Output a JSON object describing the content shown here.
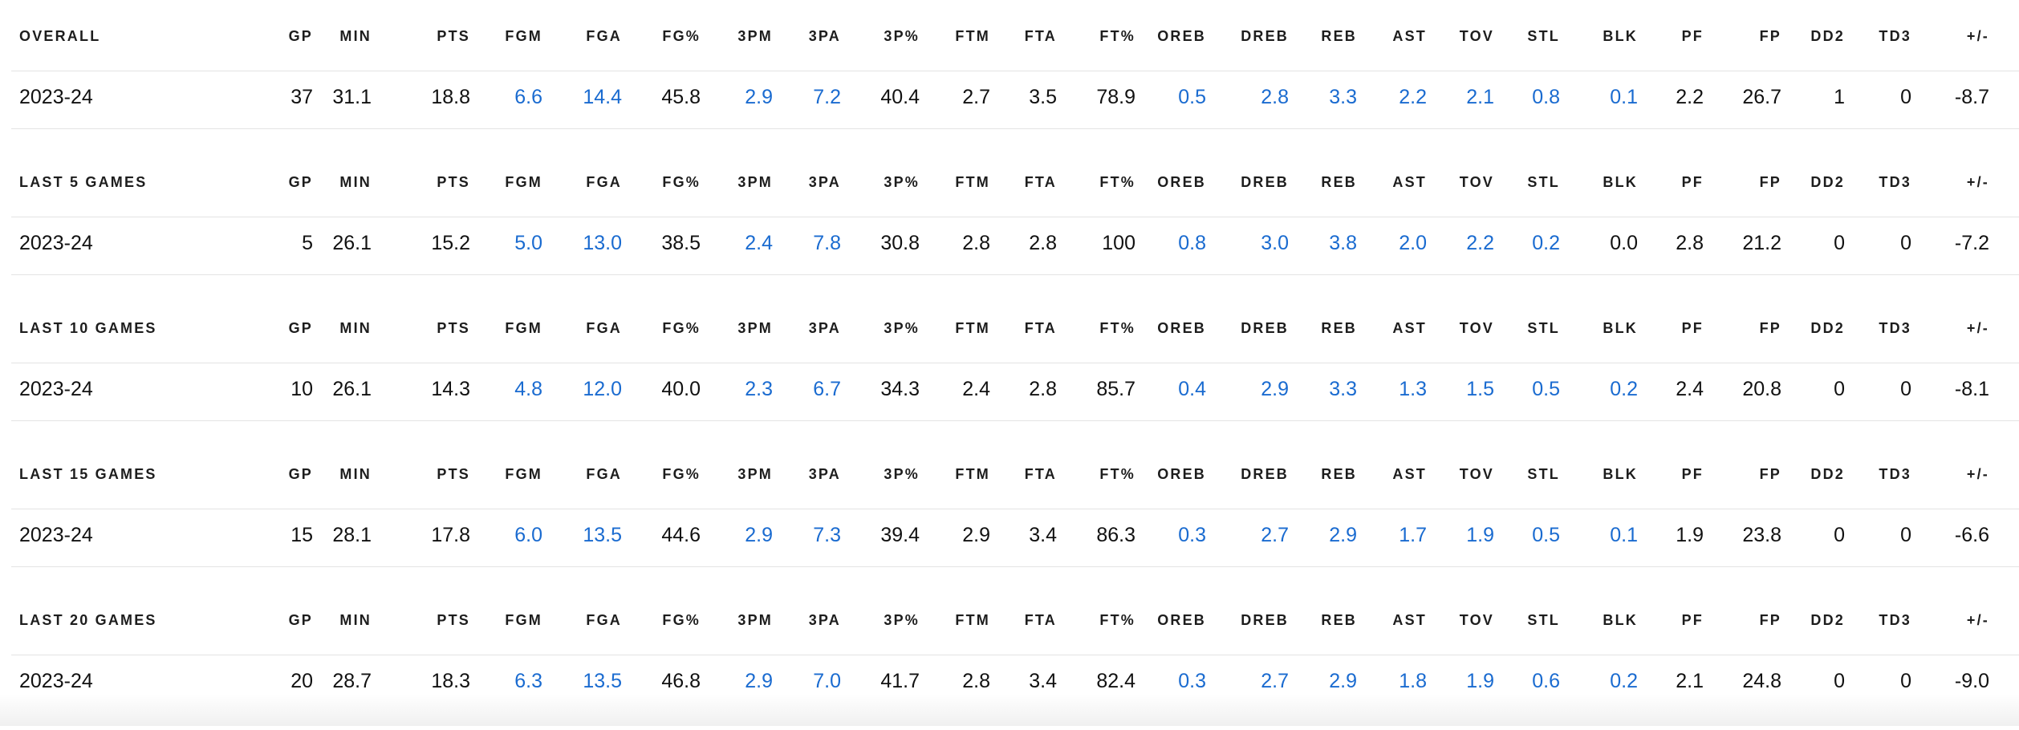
{
  "columns": [
    "GP",
    "MIN",
    "PTS",
    "FGM",
    "FGA",
    "FG%",
    "3PM",
    "3PA",
    "3P%",
    "FTM",
    "FTA",
    "FT%",
    "OREB",
    "DREB",
    "REB",
    "AST",
    "TOV",
    "STL",
    "BLK",
    "PF",
    "FP",
    "DD2",
    "TD3",
    "+/-"
  ],
  "link_color": "#1a6bd0",
  "sections": [
    {
      "title": "OVERALL",
      "row_label": "2023-24",
      "values": [
        "37",
        "31.1",
        "18.8",
        "6.6",
        "14.4",
        "45.8",
        "2.9",
        "7.2",
        "40.4",
        "2.7",
        "3.5",
        "78.9",
        "0.5",
        "2.8",
        "3.3",
        "2.2",
        "2.1",
        "0.8",
        "0.1",
        "2.2",
        "26.7",
        "1",
        "0",
        "-8.7"
      ],
      "links": [
        false,
        false,
        false,
        true,
        true,
        false,
        true,
        true,
        false,
        false,
        false,
        false,
        true,
        true,
        true,
        true,
        true,
        true,
        true,
        false,
        false,
        false,
        false,
        false
      ]
    },
    {
      "title": "LAST 5 GAMES",
      "row_label": "2023-24",
      "values": [
        "5",
        "26.1",
        "15.2",
        "5.0",
        "13.0",
        "38.5",
        "2.4",
        "7.8",
        "30.8",
        "2.8",
        "2.8",
        "100",
        "0.8",
        "3.0",
        "3.8",
        "2.0",
        "2.2",
        "0.2",
        "0.0",
        "2.8",
        "21.2",
        "0",
        "0",
        "-7.2"
      ],
      "links": [
        false,
        false,
        false,
        true,
        true,
        false,
        true,
        true,
        false,
        false,
        false,
        false,
        true,
        true,
        true,
        true,
        true,
        true,
        false,
        false,
        false,
        false,
        false,
        false
      ]
    },
    {
      "title": "LAST 10 GAMES",
      "row_label": "2023-24",
      "values": [
        "10",
        "26.1",
        "14.3",
        "4.8",
        "12.0",
        "40.0",
        "2.3",
        "6.7",
        "34.3",
        "2.4",
        "2.8",
        "85.7",
        "0.4",
        "2.9",
        "3.3",
        "1.3",
        "1.5",
        "0.5",
        "0.2",
        "2.4",
        "20.8",
        "0",
        "0",
        "-8.1"
      ],
      "links": [
        false,
        false,
        false,
        true,
        true,
        false,
        true,
        true,
        false,
        false,
        false,
        false,
        true,
        true,
        true,
        true,
        true,
        true,
        true,
        false,
        false,
        false,
        false,
        false
      ]
    },
    {
      "title": "LAST 15 GAMES",
      "row_label": "2023-24",
      "values": [
        "15",
        "28.1",
        "17.8",
        "6.0",
        "13.5",
        "44.6",
        "2.9",
        "7.3",
        "39.4",
        "2.9",
        "3.4",
        "86.3",
        "0.3",
        "2.7",
        "2.9",
        "1.7",
        "1.9",
        "0.5",
        "0.1",
        "1.9",
        "23.8",
        "0",
        "0",
        "-6.6"
      ],
      "links": [
        false,
        false,
        false,
        true,
        true,
        false,
        true,
        true,
        false,
        false,
        false,
        false,
        true,
        true,
        true,
        true,
        true,
        true,
        true,
        false,
        false,
        false,
        false,
        false
      ]
    },
    {
      "title": "LAST 20 GAMES",
      "row_label": "2023-24",
      "values": [
        "20",
        "28.7",
        "18.3",
        "6.3",
        "13.5",
        "46.8",
        "2.9",
        "7.0",
        "41.7",
        "2.8",
        "3.4",
        "82.4",
        "0.3",
        "2.7",
        "2.9",
        "1.8",
        "1.9",
        "0.6",
        "0.2",
        "2.1",
        "24.8",
        "0",
        "0",
        "-9.0"
      ],
      "links": [
        false,
        false,
        false,
        true,
        true,
        false,
        true,
        true,
        false,
        false,
        false,
        false,
        true,
        true,
        true,
        true,
        true,
        true,
        true,
        false,
        false,
        false,
        false,
        false
      ]
    }
  ]
}
